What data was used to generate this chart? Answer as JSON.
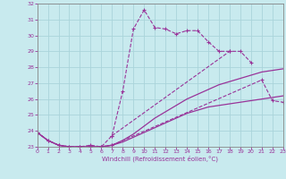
{
  "xlabel": "Windchill (Refroidissement éolien,°C)",
  "color": "#993399",
  "bg_color": "#c8eaee",
  "grid_color": "#aad4da",
  "ylim": [
    23,
    32
  ],
  "xlim": [
    0,
    23
  ],
  "yticks": [
    23,
    24,
    25,
    26,
    27,
    28,
    29,
    30,
    31,
    32
  ],
  "xticks": [
    0,
    1,
    2,
    3,
    4,
    5,
    6,
    7,
    8,
    9,
    10,
    11,
    12,
    13,
    14,
    15,
    16,
    17,
    18,
    19,
    20,
    21,
    22,
    23
  ],
  "line1_x": [
    0,
    1,
    2,
    3,
    4,
    5,
    6,
    7,
    8,
    9,
    10,
    11,
    12,
    13,
    14,
    15,
    16,
    17,
    18
  ],
  "line1_y": [
    23.9,
    23.4,
    23.1,
    23.0,
    23.0,
    23.1,
    23.0,
    23.7,
    26.5,
    30.4,
    31.6,
    30.5,
    30.4,
    30.1,
    30.3,
    30.3,
    29.6,
    29.0,
    29.0
  ],
  "line2_x": [
    7,
    18,
    19,
    20
  ],
  "line2_y": [
    23.7,
    29.0,
    29.0,
    28.3
  ],
  "line3_x": [
    0,
    1,
    2,
    3,
    4,
    5,
    6,
    7,
    21,
    22,
    23
  ],
  "line3_y": [
    23.9,
    23.4,
    23.1,
    23.0,
    23.0,
    23.0,
    23.0,
    23.1,
    27.2,
    25.9,
    25.8
  ],
  "line4_x": [
    0,
    1,
    2,
    3,
    4,
    5,
    6,
    7,
    8,
    9,
    10,
    11,
    12,
    13,
    14,
    15,
    16,
    17,
    18,
    19,
    20,
    21,
    22,
    23
  ],
  "line4_y": [
    23.9,
    23.4,
    23.1,
    23.0,
    23.0,
    23.0,
    23.0,
    23.1,
    23.3,
    23.6,
    23.9,
    24.2,
    24.5,
    24.8,
    25.1,
    25.3,
    25.5,
    25.6,
    25.7,
    25.8,
    25.9,
    26.0,
    26.1,
    26.2
  ],
  "line5_x": [
    0,
    1,
    2,
    3,
    4,
    5,
    6,
    7,
    8,
    9,
    10,
    11,
    12,
    13,
    14,
    15,
    16,
    17,
    18,
    19,
    20,
    21,
    22,
    23
  ],
  "line5_y": [
    23.9,
    23.4,
    23.1,
    23.0,
    23.0,
    23.0,
    23.0,
    23.1,
    23.4,
    23.8,
    24.3,
    24.8,
    25.2,
    25.6,
    26.0,
    26.3,
    26.6,
    26.9,
    27.1,
    27.3,
    27.5,
    27.7,
    27.8,
    27.9
  ]
}
